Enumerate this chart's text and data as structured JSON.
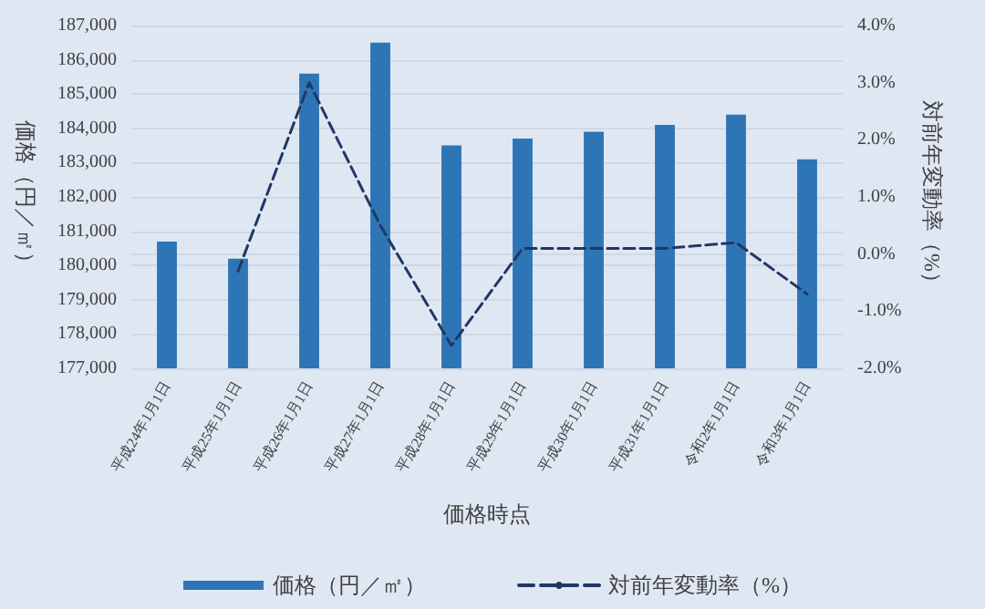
{
  "chart_data": {
    "type": "bar",
    "xlabel": "価格時点",
    "ylabel": "価格（円／㎡）",
    "y2label": "対前年変動率（%）",
    "categories": [
      "平成24年1月1日",
      "平成25年1月1日",
      "平成26年1月1日",
      "平成27年1月1日",
      "平成28年1月1日",
      "平成29年1月1日",
      "平成30年1月1日",
      "平成31年1月1日",
      "令和2年1月1日",
      "令和3年1月1日"
    ],
    "series": [
      {
        "name": "価格（円／㎡）",
        "color": "#2e75b6",
        "values": [
          180700,
          180200,
          185600,
          186500,
          183500,
          183700,
          183900,
          184100,
          184400,
          183100
        ]
      },
      {
        "name": "対前年変動率（%）",
        "type": "line",
        "axis": "y2",
        "color": "#1f3864",
        "line_style": "dashed",
        "marker": "none",
        "values": [
          null,
          -0.3,
          3.0,
          0.5,
          -1.6,
          0.1,
          0.1,
          0.1,
          0.2,
          -0.7
        ]
      }
    ],
    "ylim": [
      177000,
      187000
    ],
    "yticks": [
      {
        "value": 177000,
        "label": "177,000"
      },
      {
        "value": 178000,
        "label": "178,000"
      },
      {
        "value": 179000,
        "label": "179,000"
      },
      {
        "value": 180000,
        "label": "180,000"
      },
      {
        "value": 181000,
        "label": "181,000"
      },
      {
        "value": 182000,
        "label": "182,000"
      },
      {
        "value": 183000,
        "label": "183,000"
      },
      {
        "value": 184000,
        "label": "184,000"
      },
      {
        "value": 185000,
        "label": "185,000"
      },
      {
        "value": 186000,
        "label": "186,000"
      },
      {
        "value": 187000,
        "label": "187,000"
      }
    ],
    "y2lim": [
      -2,
      4
    ],
    "y2ticks": [
      {
        "value": -2,
        "label": "-2.0%"
      },
      {
        "value": -1,
        "label": "-1.0%"
      },
      {
        "value": 0,
        "label": "0.0%"
      },
      {
        "value": 1,
        "label": "1.0%"
      },
      {
        "value": 2,
        "label": "2.0%"
      },
      {
        "value": 3,
        "label": "3.0%"
      },
      {
        "value": 4,
        "label": "4.0%"
      }
    ],
    "grid": "y",
    "legend": "bottom"
  }
}
